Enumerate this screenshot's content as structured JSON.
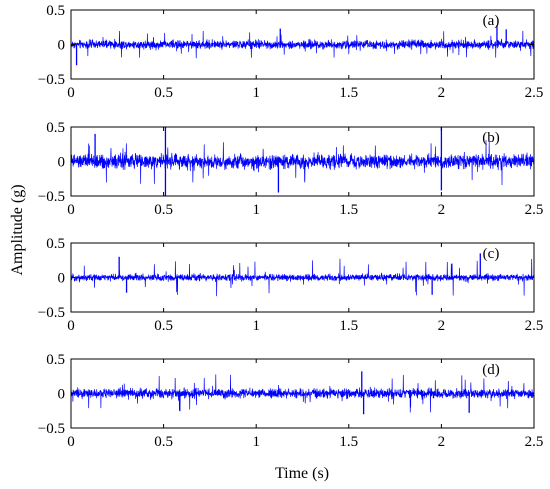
{
  "figure": {
    "ylabel": "Amplitude (g)",
    "xlabel": "Time (s)",
    "line_color": "#0000ff"
  },
  "chart_data": [
    {
      "type": "line",
      "panel_label": "(a)",
      "xlim": [
        0,
        2.5
      ],
      "ylim": [
        -0.5,
        0.5
      ],
      "xticks": [
        "0",
        "0.5",
        "1",
        "1.5",
        "2",
        "2.5"
      ],
      "yticks": [
        "0.5",
        "0",
        "−0.5"
      ],
      "series": [
        {
          "noise_amplitude": 0.09,
          "peak_amplitude": 0.2,
          "spikes": [
            {
              "x": 0.03,
              "y": -0.3
            },
            {
              "x": 1.13,
              "y": 0.23
            },
            {
              "x": 2.3,
              "y": 0.28
            },
            {
              "x": 2.35,
              "y": 0.22
            }
          ]
        }
      ]
    },
    {
      "type": "line",
      "panel_label": "(b)",
      "xlim": [
        0,
        2.5
      ],
      "ylim": [
        -0.5,
        0.5
      ],
      "xticks": [
        "0",
        "0.5",
        "1",
        "1.5",
        "2",
        "2.5"
      ],
      "yticks": [
        "0.5",
        "0",
        "−0.5"
      ],
      "series": [
        {
          "noise_amplitude": 0.15,
          "peak_amplitude": 0.35,
          "spikes": [
            {
              "x": 0.51,
              "y": 0.5
            },
            {
              "x": 0.51,
              "y": -0.5
            },
            {
              "x": 1.12,
              "y": -0.45
            },
            {
              "x": 2.0,
              "y": 0.5
            },
            {
              "x": 2.0,
              "y": -0.42
            },
            {
              "x": 0.13,
              "y": 0.4
            }
          ]
        }
      ]
    },
    {
      "type": "line",
      "panel_label": "(c)",
      "xlim": [
        0,
        2.5
      ],
      "ylim": [
        -0.5,
        0.5
      ],
      "xticks": [
        "0",
        "0.5",
        "1",
        "1.5",
        "2",
        "2.5"
      ],
      "yticks": [
        "0.5",
        "0",
        "−0.5"
      ],
      "series": [
        {
          "noise_amplitude": 0.07,
          "peak_amplitude": 0.28,
          "spikes": [
            {
              "x": 0.26,
              "y": 0.3
            },
            {
              "x": 0.3,
              "y": -0.22
            },
            {
              "x": 2.21,
              "y": 0.35
            },
            {
              "x": 1.95,
              "y": -0.25
            }
          ]
        }
      ]
    },
    {
      "type": "line",
      "panel_label": "(d)",
      "xlim": [
        0,
        2.5
      ],
      "ylim": [
        -0.5,
        0.5
      ],
      "xticks": [
        "0",
        "0.5",
        "1",
        "1.5",
        "2",
        "2.5"
      ],
      "yticks": [
        "0.5",
        "0",
        "−0.5"
      ],
      "series": [
        {
          "noise_amplitude": 0.1,
          "peak_amplitude": 0.28,
          "spikes": [
            {
              "x": 1.57,
              "y": 0.32
            },
            {
              "x": 1.58,
              "y": -0.3
            },
            {
              "x": 2.15,
              "y": -0.28
            }
          ]
        }
      ]
    }
  ]
}
